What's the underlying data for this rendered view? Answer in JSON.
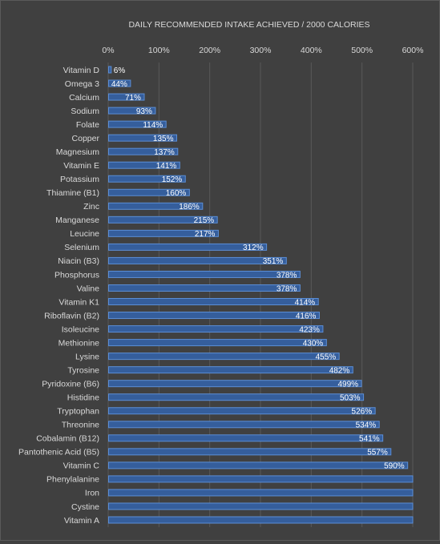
{
  "chart_data": {
    "type": "bar",
    "orientation": "horizontal",
    "title": "DAILY RECOMMENDED INTAKE ACHIEVED / 2000 CALORIES",
    "xlim": [
      0,
      600
    ],
    "x_ticks": [
      "0%",
      "100%",
      "200%",
      "300%",
      "400%",
      "500%",
      "600%"
    ],
    "x_tick_values": [
      0,
      100,
      200,
      300,
      400,
      500,
      600
    ],
    "x_axis_position": "top",
    "grid": true,
    "legend": "none",
    "categories": [
      "Vitamin D",
      "Omega 3",
      "Calcium",
      "Sodium",
      "Folate",
      "Copper",
      "Magnesium",
      "Vitamin E",
      "Potassium",
      "Thiamine (B1)",
      "Zinc",
      "Manganese",
      "Leucine",
      "Selenium",
      "Niacin (B3)",
      "Phosphorus",
      "Valine",
      "Vitamin K1",
      "Riboflavin (B2)",
      "Isoleucine",
      "Methionine",
      "Lysine",
      "Tyrosine",
      "Pyridoxine (B6)",
      "Histidine",
      "Tryptophan",
      "Threonine",
      "Cobalamin (B12)",
      "Pantothenic Acid (B5)",
      "Vitamin C",
      "Phenylalanine",
      "Iron",
      "Cystine",
      "Vitamin A"
    ],
    "values": [
      6,
      44,
      71,
      93,
      114,
      135,
      137,
      141,
      152,
      160,
      186,
      215,
      217,
      312,
      351,
      378,
      378,
      414,
      416,
      423,
      430,
      455,
      482,
      499,
      503,
      526,
      534,
      541,
      557,
      590,
      600,
      600,
      600,
      600
    ],
    "data_labels": [
      "6%",
      "44%",
      "71%",
      "93%",
      "114%",
      "135%",
      "137%",
      "141%",
      "152%",
      "160%",
      "186%",
      "215%",
      "217%",
      "312%",
      "351%",
      "378%",
      "378%",
      "414%",
      "416%",
      "423%",
      "430%",
      "455%",
      "482%",
      "499%",
      "503%",
      "526%",
      "534%",
      "541%",
      "557%",
      "590%",
      "",
      "",
      "",
      ""
    ],
    "colors": {
      "background": "#404040",
      "bar_fill": "#355e9c",
      "bar_stroke": "#5b8ed6",
      "gridline": "#595959",
      "text": "#d9d9d9",
      "data_label": "#ffffff"
    }
  }
}
